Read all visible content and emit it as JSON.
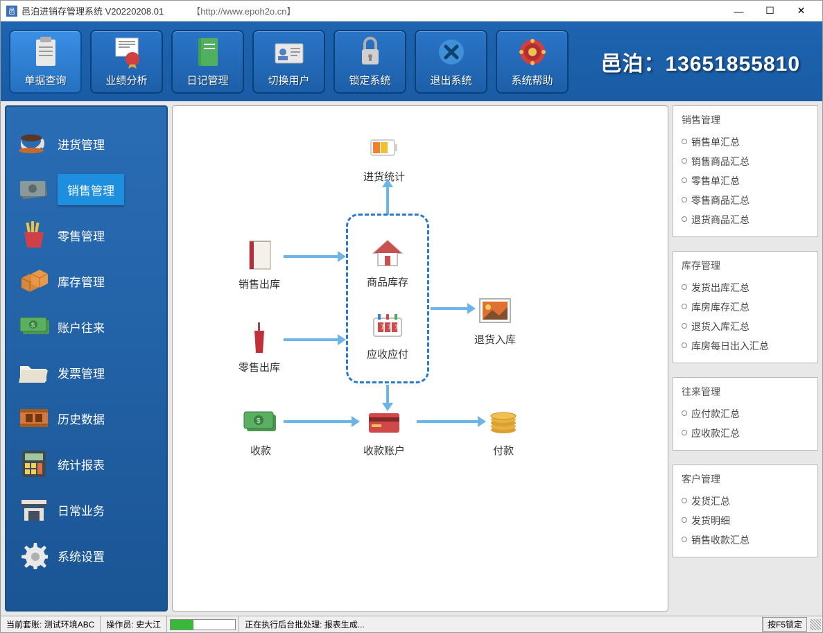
{
  "window": {
    "title": "邑泊进销存管理系统 V20220208.01",
    "url": "【http://www.epoh2o.cn】"
  },
  "brand": "邑泊：13651855810",
  "toolbar": [
    {
      "id": "doc-query",
      "label": "单据查询",
      "icon": "clipboard"
    },
    {
      "id": "perf",
      "label": "业绩分析",
      "icon": "badge"
    },
    {
      "id": "diary",
      "label": "日记管理",
      "icon": "book"
    },
    {
      "id": "switch-user",
      "label": "切换用户",
      "icon": "id-card"
    },
    {
      "id": "lock",
      "label": "锁定系统",
      "icon": "lock"
    },
    {
      "id": "exit",
      "label": "退出系统",
      "icon": "close-circle"
    },
    {
      "id": "help",
      "label": "系统帮助",
      "icon": "chip"
    }
  ],
  "sidebar": [
    {
      "id": "purchase",
      "label": "进货管理",
      "icon": "cup",
      "selected": false
    },
    {
      "id": "sales",
      "label": "销售管理",
      "icon": "cash-grey",
      "selected": true
    },
    {
      "id": "retail",
      "label": "零售管理",
      "icon": "fries",
      "selected": false
    },
    {
      "id": "inventory",
      "label": "库存管理",
      "icon": "boxes",
      "selected": false
    },
    {
      "id": "account",
      "label": "账户往来",
      "icon": "money",
      "selected": false
    },
    {
      "id": "invoice",
      "label": "发票管理",
      "icon": "folder",
      "selected": false
    },
    {
      "id": "history",
      "label": "历史数据",
      "icon": "film",
      "selected": false
    },
    {
      "id": "stats",
      "label": "统计报表",
      "icon": "calc",
      "selected": false
    },
    {
      "id": "daily",
      "label": "日常业务",
      "icon": "shop",
      "selected": false
    },
    {
      "id": "settings",
      "label": "系统设置",
      "icon": "gear",
      "selected": false
    }
  ],
  "flowchart": {
    "nodes": {
      "purchase_stat": "进货统计",
      "sales_out": "销售出库",
      "retail_out": "零售出库",
      "inventory": "商品库存",
      "receivable": "应收应付",
      "return_in": "退货入库",
      "receipt": "收款",
      "receipt_acct": "收款账户",
      "payment": "付款"
    }
  },
  "right_panels": [
    {
      "title": "销售管理",
      "items": [
        "销售单汇总",
        "销售商品汇总",
        "零售单汇总",
        "零售商品汇总",
        "退货商品汇总"
      ]
    },
    {
      "title": "库存管理",
      "items": [
        "发货出库汇总",
        "库房库存汇总",
        "退货入库汇总",
        "库房每日出入汇总"
      ]
    },
    {
      "title": "往来管理",
      "items": [
        "应付款汇总",
        "应收款汇总"
      ]
    },
    {
      "title": "客户管理",
      "items": [
        "发货汇总",
        "发货明细",
        "销售收款汇总"
      ]
    }
  ],
  "status": {
    "account_label": "当前套账:",
    "account_value": "测试环境ABC",
    "operator_label": "操作员:",
    "operator_value": "史大江",
    "task": "正在执行后台批处理: 报表生成...",
    "lock_hint": "按F5锁定"
  },
  "colors": {
    "toolbar_bg": "#1e64b0",
    "sidebar_bg": "#2a6db5",
    "accent": "#1d8fde",
    "arrow": "#6bb5e8",
    "dash_border": "#2a7acc",
    "progress": "#3ab83a"
  }
}
